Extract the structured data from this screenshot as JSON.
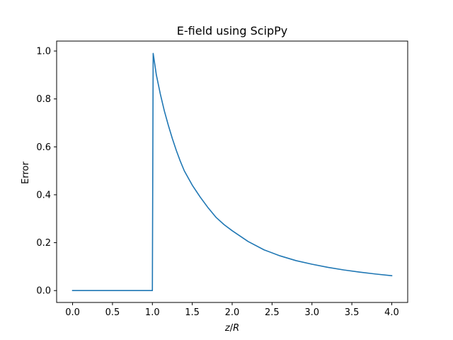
{
  "chart_data": {
    "type": "line",
    "title": "E-field using ScipPy",
    "xlabel": "z/R",
    "xlabel_parts": {
      "z": "z",
      "slash": "/",
      "r": "R"
    },
    "ylabel": "Error",
    "xlim": [
      -0.2,
      4.2
    ],
    "ylim": [
      -0.0496,
      1.0415
    ],
    "xticks": [
      0.0,
      0.5,
      1.0,
      1.5,
      2.0,
      2.5,
      3.0,
      3.5,
      4.0
    ],
    "xtick_labels": [
      "0.0",
      "0.5",
      "1.0",
      "1.5",
      "2.0",
      "2.5",
      "3.0",
      "3.5",
      "4.0"
    ],
    "yticks": [
      0.0,
      0.2,
      0.4,
      0.6,
      0.8,
      1.0
    ],
    "ytick_labels": [
      "0.0",
      "0.2",
      "0.4",
      "0.6",
      "0.8",
      "1.0"
    ],
    "grid": false,
    "legend": "none",
    "series": [
      {
        "color": "#1f77b4",
        "x": [
          0.0,
          0.5,
          0.99,
          1.0,
          1.01,
          1.05,
          1.1,
          1.15,
          1.2,
          1.25,
          1.3,
          1.35,
          1.4,
          1.5,
          1.6,
          1.7,
          1.8,
          1.9,
          2.0,
          2.2,
          2.4,
          2.6,
          2.8,
          3.0,
          3.2,
          3.4,
          3.6,
          3.8,
          4.0
        ],
        "y": [
          0.0,
          0.0,
          0.0,
          0.0,
          0.99,
          0.9,
          0.82,
          0.75,
          0.69,
          0.635,
          0.585,
          0.54,
          0.5,
          0.44,
          0.39,
          0.345,
          0.305,
          0.275,
          0.25,
          0.205,
          0.17,
          0.145,
          0.125,
          0.11,
          0.097,
          0.086,
          0.077,
          0.069,
          0.062
        ]
      }
    ]
  }
}
